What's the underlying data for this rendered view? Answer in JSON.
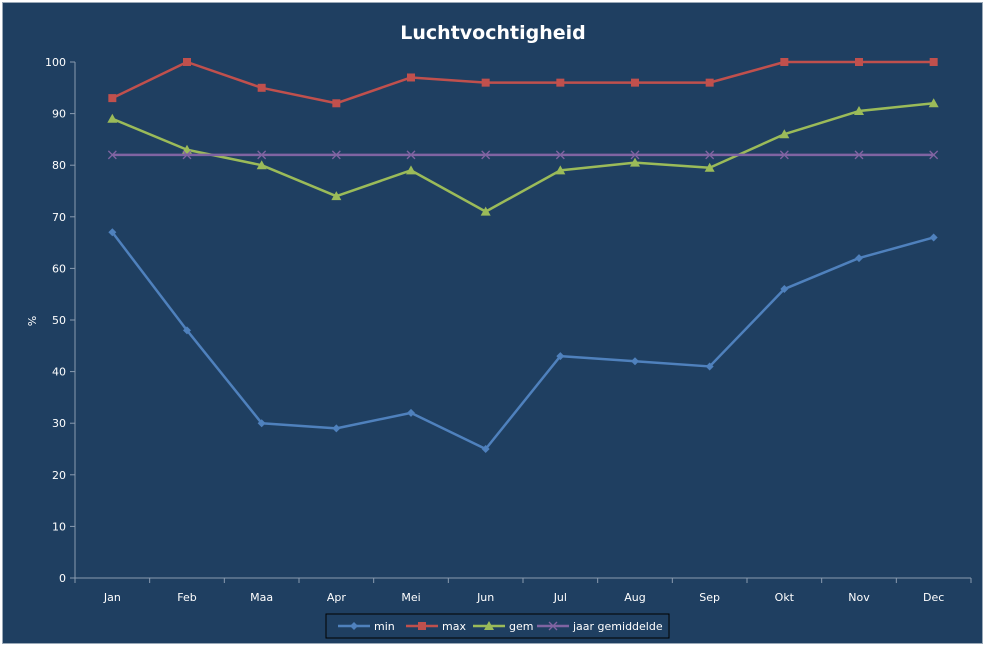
{
  "chart_data": {
    "type": "line",
    "title": "Luchtvochtigheid",
    "xlabel": "",
    "ylabel": "%",
    "ylim": [
      0,
      100
    ],
    "yticks": [
      0,
      10,
      20,
      30,
      40,
      50,
      60,
      70,
      80,
      90,
      100
    ],
    "grid": false,
    "legend_position": "bottom",
    "categories": [
      "Jan",
      "Feb",
      "Maa",
      "Apr",
      "Mei",
      "Jun",
      "Jul",
      "Aug",
      "Sep",
      "Okt",
      "Nov",
      "Dec"
    ],
    "series": [
      {
        "name": "min",
        "marker": "diamond",
        "color": "#4f81bd",
        "values": [
          67,
          48,
          30,
          29,
          32,
          25,
          43,
          42,
          41,
          56,
          62,
          66
        ]
      },
      {
        "name": "max",
        "marker": "square",
        "color": "#c0504d",
        "values": [
          93,
          100,
          95,
          92,
          97,
          96,
          96,
          96,
          96,
          100,
          100,
          100
        ]
      },
      {
        "name": "gem",
        "marker": "triangle",
        "color": "#9bbb59",
        "values": [
          89,
          83,
          80,
          74,
          79,
          71,
          79,
          80.5,
          79.5,
          86,
          90.5,
          92
        ]
      },
      {
        "name": "jaar gemiddelde",
        "marker": "x",
        "color": "#8064a2",
        "values": [
          82,
          82,
          82,
          82,
          82,
          82,
          82,
          82,
          82,
          82,
          82,
          82
        ]
      }
    ]
  },
  "colors": {
    "background": "#1f3f61",
    "axis": "#8a9bb0",
    "text": "#ffffff"
  }
}
